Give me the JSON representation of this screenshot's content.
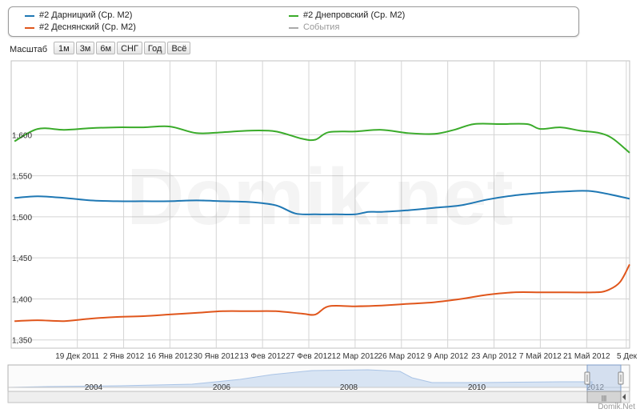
{
  "legend": {
    "items": [
      {
        "label": "#2 Дарницкий (Ср. М2)",
        "color": "#1f78b4"
      },
      {
        "label": "#2 Деснянский (Ср. М2)",
        "color": "#e0561c"
      },
      {
        "label": "#2 Днепровский (Ср. М2)",
        "color": "#3aab2a"
      },
      {
        "label": "События",
        "color": "#aaaaaa"
      }
    ]
  },
  "zoom": {
    "label": "Масштаб",
    "buttons": [
      "1м",
      "3м",
      "6м",
      "СНГ",
      "Год",
      "Всё"
    ]
  },
  "watermark": "Domik.net",
  "brand": "Domik.Net",
  "chart_data": {
    "type": "line",
    "title": "",
    "xlabel": "",
    "ylabel": "",
    "ylim": [
      1340,
      1690
    ],
    "xlim": [
      0,
      371
    ],
    "grid": true,
    "y_ticks": [
      {
        "value": 1350,
        "label": "1,350"
      },
      {
        "value": 1400,
        "label": "1,400"
      },
      {
        "value": 1450,
        "label": "1,450"
      },
      {
        "value": 1500,
        "label": "1,500"
      },
      {
        "value": 1550,
        "label": "1,550"
      },
      {
        "value": 1600,
        "label": "1,600"
      }
    ],
    "x_ticks": [
      {
        "day": 20,
        "label": "19 Дек 2011"
      },
      {
        "day": 34,
        "label": "2 Янв 2012"
      },
      {
        "day": 48,
        "label": "16 Янв 2012"
      },
      {
        "day": 62,
        "label": "30 Янв 2012"
      },
      {
        "day": 76,
        "label": "13 Фев 2012"
      },
      {
        "day": 90,
        "label": "27 Фев 2012"
      },
      {
        "day": 104,
        "label": "12 Мар 2012"
      },
      {
        "day": 118,
        "label": "26 Мар 2012"
      },
      {
        "day": 132,
        "label": "9 Апр 2012"
      },
      {
        "day": 146,
        "label": "23 Апр 2012"
      },
      {
        "day": 160,
        "label": "7 Май 2012"
      },
      {
        "day": 174,
        "label": "21 Май 2012"
      },
      {
        "day": 186,
        "label": "5 Дек"
      }
    ],
    "series": [
      {
        "name": "#2 Днепровский (Ср. М2)",
        "color": "#3aab2a",
        "x": [
          1,
          8,
          16,
          24,
          32,
          40,
          48,
          56,
          64,
          72,
          80,
          88,
          92,
          96,
          104,
          112,
          120,
          128,
          134,
          140,
          148,
          156,
          160,
          166,
          172,
          178,
          182,
          187
        ],
        "y": [
          1592,
          1607,
          1606,
          1608,
          1609,
          1609,
          1610,
          1602,
          1603,
          1605,
          1604,
          1595,
          1594,
          1603,
          1604,
          1606,
          1602,
          1601,
          1606,
          1613,
          1613,
          1613,
          1607,
          1609,
          1605,
          1602,
          1595,
          1578
        ]
      },
      {
        "name": "#2 Дарницкий (Ср. М2)",
        "color": "#1f78b4",
        "x": [
          1,
          8,
          16,
          24,
          32,
          40,
          48,
          56,
          64,
          72,
          80,
          86,
          92,
          98,
          104,
          108,
          112,
          120,
          128,
          136,
          144,
          152,
          160,
          168,
          176,
          187
        ],
        "y": [
          1523,
          1525,
          1523,
          1520,
          1519,
          1519,
          1519,
          1520,
          1519,
          1518,
          1514,
          1504,
          1503,
          1503,
          1503,
          1506,
          1506,
          1508,
          1511,
          1514,
          1521,
          1526,
          1529,
          1531,
          1531,
          1522
        ]
      },
      {
        "name": "#2 Деснянский (Ср. М2)",
        "color": "#e0561c",
        "x": [
          1,
          8,
          16,
          24,
          32,
          40,
          48,
          56,
          64,
          72,
          80,
          88,
          92,
          96,
          104,
          112,
          120,
          128,
          136,
          144,
          152,
          160,
          168,
          176,
          180,
          184,
          187
        ],
        "y": [
          1373,
          1374,
          1373,
          1376,
          1378,
          1379,
          1381,
          1383,
          1385,
          1385,
          1385,
          1382,
          1381,
          1391,
          1391,
          1392,
          1394,
          1396,
          1400,
          1405,
          1408,
          1408,
          1408,
          1408,
          1410,
          1420,
          1442
        ]
      }
    ]
  },
  "navigator": {
    "year_labels": [
      "2004",
      "2006",
      "2008",
      "2010",
      "2012"
    ],
    "scroll_grip": "|||"
  }
}
